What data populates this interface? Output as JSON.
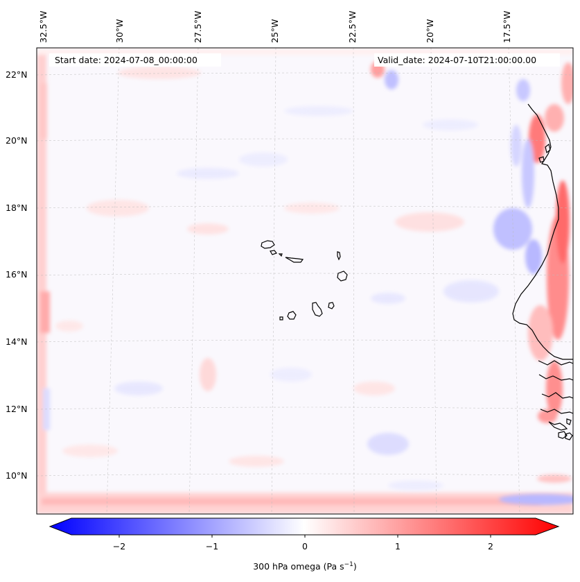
{
  "header": {
    "start_date": "Start date: 2024-07-08_00:00:00",
    "valid_date": "Valid_date: 2024-07-10T21:00:00.00"
  },
  "axes": {
    "lon_labels": [
      "32.5°W",
      "30°W",
      "27.5°W",
      "25°W",
      "22.5°W",
      "20°W",
      "17.5°W"
    ],
    "lat_labels": [
      "22°N",
      "20°N",
      "18°N",
      "16°N",
      "14°N",
      "12°N",
      "10°N"
    ]
  },
  "colorbar": {
    "ticks": [
      "−2",
      "−1",
      "0",
      "1",
      "2"
    ],
    "label": "300 hPa omega (Pa s",
    "label_sup": "−1",
    "label_close": ")",
    "min": -2.6,
    "max": 2.6,
    "colors": {
      "negative": "#0000ff",
      "zero": "#ffffff",
      "positive": "#ff0000"
    }
  },
  "map": {
    "field": "300 hPa omega",
    "islands": "Cape Verde",
    "coastline": "West Africa"
  }
}
